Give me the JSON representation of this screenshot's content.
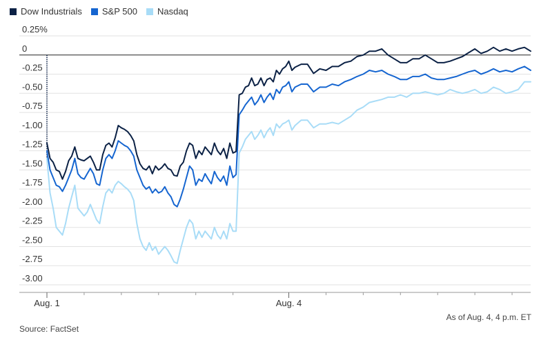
{
  "chart_data": {
    "type": "line",
    "title": "",
    "xlabel": "",
    "ylabel": "",
    "unit_suffix": "%",
    "ylim": [
      -3.0,
      0.25
    ],
    "yticks": [
      0.25,
      0,
      -0.25,
      -0.5,
      -0.75,
      -1.0,
      -1.25,
      -1.5,
      -1.75,
      -2.0,
      -2.25,
      -2.5,
      -2.75,
      -3.0
    ],
    "ytick_labels": [
      "0.25%",
      "0",
      "-0.25",
      "-0.50",
      "-0.75",
      "-1.00",
      "-1.25",
      "-1.50",
      "-1.75",
      "-2.00",
      "-2.25",
      "-2.50",
      "-2.75",
      "-3.00"
    ],
    "x_labels": [
      {
        "label": "Aug. 1",
        "x": 0
      },
      {
        "label": "Aug. 4",
        "x": 78
      }
    ],
    "x_minor_ticks": [
      12,
      24,
      36,
      48,
      60,
      90,
      102,
      114,
      126,
      138,
      150
    ],
    "xlim": [
      0,
      156
    ],
    "grid": true,
    "zero_line": true,
    "legend_position": "top-left",
    "series": [
      {
        "name": "Dow Industrials",
        "color": "#0b2145",
        "x": [
          0,
          1,
          2,
          3,
          4,
          5,
          6,
          7,
          8,
          9,
          10,
          11,
          12,
          13,
          14,
          15,
          16,
          17,
          18,
          19,
          20,
          21,
          22,
          23,
          24,
          25,
          26,
          27,
          28,
          29,
          30,
          31,
          32,
          33,
          34,
          35,
          36,
          37,
          38,
          39,
          40,
          41,
          42,
          43,
          44,
          45,
          46,
          47,
          48,
          49,
          50,
          51,
          52,
          53,
          54,
          55,
          56,
          57,
          58,
          59,
          60,
          61,
          62,
          63,
          64,
          65,
          66,
          67,
          68,
          69,
          70,
          71,
          72,
          73,
          74,
          75,
          76,
          77,
          78,
          79,
          80,
          82,
          84,
          86,
          88,
          90,
          92,
          94,
          96,
          98,
          100,
          102,
          104,
          106,
          108,
          110,
          112,
          114,
          116,
          118,
          120,
          122,
          124,
          126,
          128,
          130,
          132,
          134,
          136,
          138,
          140,
          142,
          144,
          146,
          148,
          150,
          152,
          154,
          156
        ],
        "values": [
          -1.15,
          -1.35,
          -1.4,
          -1.5,
          -1.52,
          -1.62,
          -1.52,
          -1.38,
          -1.32,
          -1.2,
          -1.35,
          -1.37,
          -1.38,
          -1.35,
          -1.32,
          -1.4,
          -1.5,
          -1.5,
          -1.3,
          -1.18,
          -1.15,
          -1.2,
          -1.08,
          -0.92,
          -0.95,
          -0.97,
          -1.0,
          -1.05,
          -1.12,
          -1.3,
          -1.42,
          -1.48,
          -1.5,
          -1.45,
          -1.55,
          -1.45,
          -1.5,
          -1.47,
          -1.42,
          -1.48,
          -1.5,
          -1.57,
          -1.58,
          -1.45,
          -1.4,
          -1.25,
          -1.15,
          -1.18,
          -1.35,
          -1.25,
          -1.3,
          -1.2,
          -1.25,
          -1.3,
          -1.15,
          -1.25,
          -1.3,
          -1.22,
          -1.35,
          -1.15,
          -1.28,
          -1.26,
          -0.52,
          -0.5,
          -0.42,
          -0.4,
          -0.3,
          -0.4,
          -0.38,
          -0.3,
          -0.4,
          -0.32,
          -0.3,
          -0.35,
          -0.2,
          -0.25,
          -0.18,
          -0.15,
          -0.08,
          -0.2,
          -0.16,
          -0.12,
          -0.12,
          -0.24,
          -0.18,
          -0.2,
          -0.15,
          -0.15,
          -0.1,
          -0.08,
          -0.02,
          0.0,
          0.05,
          0.05,
          0.08,
          0.0,
          -0.05,
          -0.1,
          -0.1,
          -0.05,
          -0.05,
          0.0,
          -0.05,
          -0.1,
          -0.1,
          -0.08,
          -0.05,
          -0.02,
          0.03,
          0.08,
          0.02,
          0.05,
          0.1,
          0.05,
          0.08,
          0.05,
          0.08,
          0.1,
          0.05
        ]
      },
      {
        "name": "S&P 500",
        "color": "#1565d0",
        "x": [
          0,
          1,
          2,
          3,
          4,
          5,
          6,
          7,
          8,
          9,
          10,
          11,
          12,
          13,
          14,
          15,
          16,
          17,
          18,
          19,
          20,
          21,
          22,
          23,
          24,
          25,
          26,
          27,
          28,
          29,
          30,
          31,
          32,
          33,
          34,
          35,
          36,
          37,
          38,
          39,
          40,
          41,
          42,
          43,
          44,
          45,
          46,
          47,
          48,
          49,
          50,
          51,
          52,
          53,
          54,
          55,
          56,
          57,
          58,
          59,
          60,
          61,
          62,
          63,
          64,
          65,
          66,
          67,
          68,
          69,
          70,
          71,
          72,
          73,
          74,
          75,
          76,
          77,
          78,
          79,
          80,
          82,
          84,
          86,
          88,
          90,
          92,
          94,
          96,
          98,
          100,
          102,
          104,
          106,
          108,
          110,
          112,
          114,
          116,
          118,
          120,
          122,
          124,
          126,
          128,
          130,
          132,
          134,
          136,
          138,
          140,
          142,
          144,
          146,
          148,
          150,
          152,
          154,
          156
        ],
        "values": [
          -1.25,
          -1.5,
          -1.6,
          -1.7,
          -1.72,
          -1.78,
          -1.7,
          -1.6,
          -1.5,
          -1.35,
          -1.55,
          -1.6,
          -1.62,
          -1.55,
          -1.48,
          -1.55,
          -1.68,
          -1.7,
          -1.5,
          -1.35,
          -1.3,
          -1.35,
          -1.25,
          -1.12,
          -1.15,
          -1.18,
          -1.2,
          -1.25,
          -1.32,
          -1.5,
          -1.6,
          -1.7,
          -1.75,
          -1.72,
          -1.8,
          -1.75,
          -1.8,
          -1.78,
          -1.72,
          -1.8,
          -1.85,
          -1.95,
          -1.98,
          -1.88,
          -1.75,
          -1.6,
          -1.45,
          -1.5,
          -1.7,
          -1.62,
          -1.65,
          -1.55,
          -1.62,
          -1.68,
          -1.52,
          -1.6,
          -1.65,
          -1.58,
          -1.7,
          -1.45,
          -1.6,
          -1.56,
          -0.78,
          -0.72,
          -0.65,
          -0.6,
          -0.55,
          -0.65,
          -0.6,
          -0.52,
          -0.62,
          -0.55,
          -0.5,
          -0.58,
          -0.45,
          -0.5,
          -0.42,
          -0.4,
          -0.35,
          -0.48,
          -0.42,
          -0.38,
          -0.38,
          -0.48,
          -0.42,
          -0.42,
          -0.38,
          -0.4,
          -0.35,
          -0.32,
          -0.28,
          -0.25,
          -0.2,
          -0.22,
          -0.2,
          -0.25,
          -0.28,
          -0.32,
          -0.32,
          -0.28,
          -0.28,
          -0.25,
          -0.3,
          -0.32,
          -0.32,
          -0.3,
          -0.28,
          -0.25,
          -0.22,
          -0.2,
          -0.25,
          -0.22,
          -0.18,
          -0.22,
          -0.2,
          -0.22,
          -0.18,
          -0.15,
          -0.2
        ]
      },
      {
        "name": "Nasdaq",
        "color": "#a8dcf7",
        "x": [
          0,
          1,
          2,
          3,
          4,
          5,
          6,
          7,
          8,
          9,
          10,
          11,
          12,
          13,
          14,
          15,
          16,
          17,
          18,
          19,
          20,
          21,
          22,
          23,
          24,
          25,
          26,
          27,
          28,
          29,
          30,
          31,
          32,
          33,
          34,
          35,
          36,
          37,
          38,
          39,
          40,
          41,
          42,
          43,
          44,
          45,
          46,
          47,
          48,
          49,
          50,
          51,
          52,
          53,
          54,
          55,
          56,
          57,
          58,
          59,
          60,
          61,
          62,
          63,
          64,
          65,
          66,
          67,
          68,
          69,
          70,
          71,
          72,
          73,
          74,
          75,
          76,
          77,
          78,
          79,
          80,
          82,
          84,
          86,
          88,
          90,
          92,
          94,
          96,
          98,
          100,
          102,
          104,
          106,
          108,
          110,
          112,
          114,
          116,
          118,
          120,
          122,
          124,
          126,
          128,
          130,
          132,
          134,
          136,
          138,
          140,
          142,
          144,
          146,
          148,
          150,
          152,
          154,
          156
        ],
        "values": [
          -1.35,
          -1.8,
          -2.0,
          -2.25,
          -2.3,
          -2.35,
          -2.2,
          -2.0,
          -1.85,
          -1.7,
          -2.0,
          -2.05,
          -2.1,
          -2.05,
          -1.95,
          -2.05,
          -2.15,
          -2.2,
          -1.98,
          -1.8,
          -1.75,
          -1.8,
          -1.7,
          -1.65,
          -1.68,
          -1.72,
          -1.75,
          -1.8,
          -1.9,
          -2.2,
          -2.4,
          -2.5,
          -2.55,
          -2.45,
          -2.55,
          -2.5,
          -2.6,
          -2.55,
          -2.5,
          -2.55,
          -2.62,
          -2.7,
          -2.72,
          -2.55,
          -2.4,
          -2.25,
          -2.15,
          -2.2,
          -2.4,
          -2.3,
          -2.38,
          -2.3,
          -2.35,
          -2.4,
          -2.25,
          -2.35,
          -2.4,
          -2.3,
          -2.4,
          -2.2,
          -2.3,
          -2.3,
          -1.28,
          -1.2,
          -1.1,
          -1.05,
          -1.0,
          -1.1,
          -1.05,
          -0.98,
          -1.08,
          -1.0,
          -0.95,
          -1.05,
          -0.9,
          -0.95,
          -0.9,
          -0.88,
          -0.85,
          -0.98,
          -0.92,
          -0.85,
          -0.85,
          -0.95,
          -0.9,
          -0.9,
          -0.88,
          -0.9,
          -0.85,
          -0.8,
          -0.72,
          -0.68,
          -0.62,
          -0.6,
          -0.58,
          -0.55,
          -0.55,
          -0.52,
          -0.55,
          -0.5,
          -0.5,
          -0.48,
          -0.5,
          -0.52,
          -0.5,
          -0.45,
          -0.48,
          -0.5,
          -0.48,
          -0.45,
          -0.5,
          -0.48,
          -0.42,
          -0.45,
          -0.5,
          -0.48,
          -0.45,
          -0.35,
          -0.35
        ]
      }
    ]
  },
  "footer": {
    "source": "Source: FactSet",
    "timestamp": "As of Aug. 4, 4 p.m. ET"
  }
}
